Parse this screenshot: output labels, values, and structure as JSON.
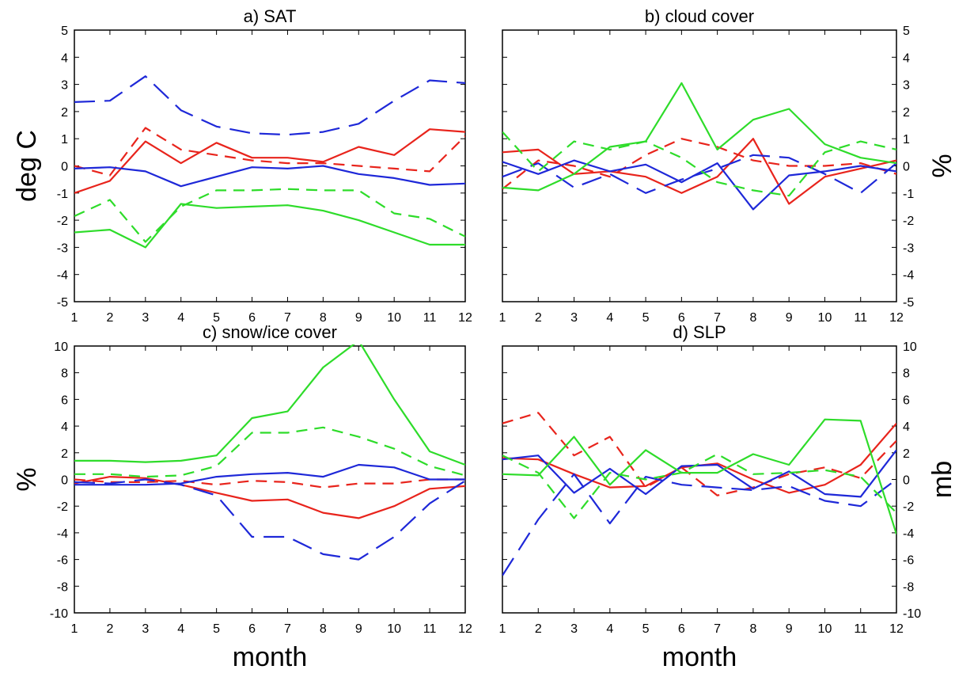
{
  "chart_data": [
    {
      "panel": "a",
      "type": "line",
      "title": "a) SAT",
      "ylabel": "deg C",
      "xlabel": "",
      "x": [
        1,
        2,
        3,
        4,
        5,
        6,
        7,
        8,
        9,
        10,
        11,
        12
      ],
      "xticks": [
        "1",
        "2",
        "3",
        "4",
        "5",
        "6",
        "7",
        "8",
        "9",
        "10",
        "11",
        "12"
      ],
      "ylim": [
        -5,
        5
      ],
      "yticks": [
        -5,
        -4,
        -3,
        -2,
        -1,
        0,
        1,
        2,
        3,
        4,
        5
      ],
      "ytick_labels": [
        "-5",
        "-4",
        "-3",
        "-2",
        "-1",
        "0",
        "1",
        "2",
        "3",
        "4",
        "5"
      ],
      "yaxis_side": "left",
      "series": [
        {
          "color": "#e8241c",
          "style": "solid",
          "values": [
            -1.0,
            -0.55,
            0.9,
            0.1,
            0.85,
            0.3,
            0.3,
            0.15,
            0.7,
            0.4,
            1.35,
            1.25
          ]
        },
        {
          "color": "#e8241c",
          "style": "dashed",
          "values": [
            0.0,
            -0.35,
            1.4,
            0.6,
            0.4,
            0.2,
            0.1,
            0.1,
            0.0,
            -0.1,
            -0.2,
            1.1
          ]
        },
        {
          "color": "#1e28d8",
          "style": "solid",
          "values": [
            -0.1,
            -0.05,
            -0.2,
            -0.75,
            -0.4,
            -0.05,
            -0.1,
            0.0,
            -0.3,
            -0.45,
            -0.7,
            -0.65
          ]
        },
        {
          "color": "#1e28d8",
          "style": "longdash",
          "values": [
            2.35,
            2.4,
            3.3,
            2.05,
            1.45,
            1.2,
            1.15,
            1.25,
            1.55,
            2.4,
            3.15,
            3.05
          ]
        },
        {
          "color": "#2edc2a",
          "style": "solid",
          "values": [
            -2.45,
            -2.35,
            -3.0,
            -1.4,
            -1.55,
            -1.5,
            -1.45,
            -1.65,
            -2.0,
            -2.45,
            -2.9,
            -2.9
          ]
        },
        {
          "color": "#2edc2a",
          "style": "dashed",
          "values": [
            -1.85,
            -1.25,
            -2.8,
            -1.5,
            -0.9,
            -0.9,
            -0.85,
            -0.9,
            -0.9,
            -1.75,
            -1.95,
            -2.6
          ]
        }
      ]
    },
    {
      "panel": "b",
      "type": "line",
      "title": "b) cloud cover",
      "ylabel": "%",
      "xlabel": "",
      "x": [
        1,
        2,
        3,
        4,
        5,
        6,
        7,
        8,
        9,
        10,
        11,
        12
      ],
      "xticks": [
        "1",
        "2",
        "3",
        "4",
        "5",
        "6",
        "7",
        "8",
        "9",
        "10",
        "11",
        "12"
      ],
      "ylim": [
        -5,
        5
      ],
      "yticks": [
        -5,
        -4,
        -3,
        -2,
        -1,
        0,
        1,
        2,
        3,
        4,
        5
      ],
      "ytick_labels": [
        "-5",
        "-4",
        "-3",
        "-2",
        "-1",
        "0",
        "1",
        "2",
        "3",
        "4",
        "5"
      ],
      "yaxis_side": "right",
      "series": [
        {
          "color": "#e8241c",
          "style": "solid",
          "values": [
            0.5,
            0.6,
            -0.3,
            -0.2,
            -0.4,
            -1.0,
            -0.4,
            1.0,
            -1.4,
            -0.4,
            -0.1,
            0.2
          ]
        },
        {
          "color": "#e8241c",
          "style": "dashed",
          "values": [
            -0.85,
            0.2,
            0.0,
            -0.4,
            0.4,
            1.0,
            0.7,
            0.2,
            0.0,
            0.0,
            0.1,
            -0.3
          ]
        },
        {
          "color": "#1e28d8",
          "style": "solid",
          "values": [
            0.15,
            -0.3,
            0.2,
            -0.2,
            0.05,
            -0.6,
            0.1,
            -1.6,
            -0.35,
            -0.2,
            0.0,
            -0.2
          ]
        },
        {
          "color": "#1e28d8",
          "style": "longdash",
          "values": [
            -0.4,
            0.1,
            -0.8,
            -0.3,
            -1.0,
            -0.5,
            -0.1,
            0.4,
            0.3,
            -0.3,
            -1.0,
            0.1
          ]
        },
        {
          "color": "#2edc2a",
          "style": "solid",
          "values": [
            -0.8,
            -0.9,
            -0.3,
            0.7,
            0.9,
            3.05,
            0.6,
            1.7,
            2.1,
            0.8,
            0.3,
            0.1
          ]
        },
        {
          "color": "#2edc2a",
          "style": "dashed",
          "values": [
            1.25,
            -0.2,
            0.9,
            0.6,
            0.9,
            0.3,
            -0.6,
            -0.9,
            -1.1,
            0.5,
            0.9,
            0.6
          ]
        }
      ]
    },
    {
      "panel": "c",
      "type": "line",
      "title": "c) snow/ice cover",
      "ylabel": "%",
      "xlabel": "month",
      "x": [
        1,
        2,
        3,
        4,
        5,
        6,
        7,
        8,
        9,
        10,
        11,
        12
      ],
      "xticks": [
        "1",
        "2",
        "3",
        "4",
        "5",
        "6",
        "7",
        "8",
        "9",
        "10",
        "11",
        "12"
      ],
      "ylim": [
        -10,
        10
      ],
      "yticks": [
        -10,
        -8,
        -6,
        -4,
        -2,
        0,
        2,
        4,
        6,
        8,
        10
      ],
      "ytick_labels": [
        "-10",
        "-8",
        "-6",
        "-4",
        "-2",
        "0",
        "2",
        "4",
        "6",
        "8",
        "10"
      ],
      "yaxis_side": "left",
      "series": [
        {
          "color": "#e8241c",
          "style": "solid",
          "values": [
            -0.3,
            0.2,
            0.1,
            -0.4,
            -1.0,
            -1.6,
            -1.5,
            -2.5,
            -2.9,
            -2.0,
            -0.7,
            -0.5
          ]
        },
        {
          "color": "#e8241c",
          "style": "dashed",
          "values": [
            0.0,
            -0.2,
            -0.2,
            -0.1,
            -0.4,
            -0.1,
            -0.2,
            -0.6,
            -0.3,
            -0.3,
            0.0,
            0.0
          ]
        },
        {
          "color": "#1e28d8",
          "style": "solid",
          "values": [
            -0.4,
            -0.4,
            -0.4,
            -0.3,
            0.2,
            0.4,
            0.5,
            0.2,
            1.1,
            0.9,
            0.0,
            0.0
          ]
        },
        {
          "color": "#1e28d8",
          "style": "longdash",
          "values": [
            -0.2,
            -0.3,
            0.0,
            -0.4,
            -1.2,
            -4.3,
            -4.3,
            -5.6,
            -6.0,
            -4.3,
            -1.8,
            -0.1
          ]
        },
        {
          "color": "#2edc2a",
          "style": "solid",
          "values": [
            1.4,
            1.4,
            1.3,
            1.4,
            1.8,
            4.6,
            5.1,
            8.4,
            10.4,
            6.0,
            2.1,
            1.1
          ]
        },
        {
          "color": "#2edc2a",
          "style": "dashed",
          "values": [
            0.4,
            0.4,
            0.2,
            0.3,
            1.0,
            3.5,
            3.5,
            3.9,
            3.2,
            2.3,
            1.0,
            0.3
          ]
        }
      ]
    },
    {
      "panel": "d",
      "type": "line",
      "title": "d) SLP",
      "ylabel": "mb",
      "xlabel": "month",
      "x": [
        1,
        2,
        3,
        4,
        5,
        6,
        7,
        8,
        9,
        10,
        11,
        12
      ],
      "xticks": [
        "1",
        "2",
        "3",
        "4",
        "5",
        "6",
        "7",
        "8",
        "9",
        "10",
        "11",
        "12"
      ],
      "ylim": [
        -10,
        10
      ],
      "yticks": [
        -10,
        -8,
        -6,
        -4,
        -2,
        0,
        2,
        4,
        6,
        8,
        10
      ],
      "ytick_labels": [
        "-10",
        "-8",
        "-6",
        "-4",
        "-2",
        "0",
        "2",
        "4",
        "6",
        "8",
        "10"
      ],
      "yaxis_side": "right",
      "series": [
        {
          "color": "#e8241c",
          "style": "solid",
          "values": [
            1.6,
            1.5,
            0.4,
            -0.6,
            -0.5,
            0.9,
            1.2,
            0.0,
            -1.0,
            -0.4,
            1.1,
            4.2
          ]
        },
        {
          "color": "#e8241c",
          "style": "dashed",
          "values": [
            4.2,
            5.0,
            1.8,
            3.2,
            -0.6,
            0.9,
            -1.2,
            -0.6,
            0.4,
            0.9,
            0.1,
            2.9
          ]
        },
        {
          "color": "#1e28d8",
          "style": "solid",
          "values": [
            1.5,
            1.8,
            -1.0,
            0.8,
            -1.1,
            1.0,
            1.1,
            -0.7,
            0.6,
            -1.1,
            -1.3,
            2.2
          ]
        },
        {
          "color": "#1e28d8",
          "style": "longdash",
          "values": [
            -7.2,
            -3.0,
            0.4,
            -3.3,
            0.2,
            -0.4,
            -0.6,
            -0.8,
            -0.5,
            -1.6,
            -2.0,
            0.0
          ]
        },
        {
          "color": "#2edc2a",
          "style": "solid",
          "values": [
            0.4,
            0.3,
            3.2,
            -0.4,
            2.2,
            0.5,
            0.5,
            1.9,
            1.1,
            4.5,
            4.4,
            -4.1
          ]
        },
        {
          "color": "#2edc2a",
          "style": "dashed",
          "values": [
            1.8,
            0.5,
            -2.9,
            0.5,
            0.0,
            0.5,
            1.9,
            0.4,
            0.5,
            0.7,
            0.2,
            -2.5
          ]
        }
      ]
    }
  ]
}
